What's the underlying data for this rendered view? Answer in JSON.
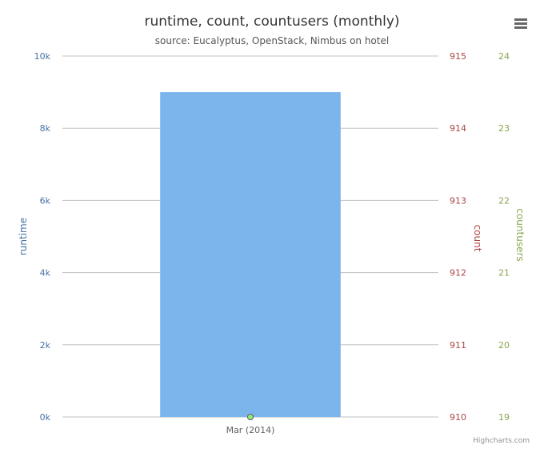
{
  "chart_data": {
    "type": "bar",
    "title": "runtime, count, countusers (monthly)",
    "subtitle": "source: Eucalyptus, OpenStack, Nimbus on hotel",
    "categories": [
      "Mar (2014)"
    ],
    "axes": {
      "runtime": {
        "label": "runtime",
        "color": "#4572a7",
        "range": [
          0,
          10000
        ],
        "ticks": [
          "0k",
          "2k",
          "4k",
          "6k",
          "8k",
          "10k"
        ]
      },
      "count": {
        "label": "count",
        "color": "#aa4643",
        "range": [
          910,
          915
        ],
        "ticks": [
          "910",
          "911",
          "912",
          "913",
          "914",
          "915"
        ]
      },
      "countusers": {
        "label": "countusers",
        "color": "#89a54e",
        "range": [
          19,
          24
        ],
        "ticks": [
          "19",
          "20",
          "21",
          "22",
          "23",
          "24"
        ]
      }
    },
    "series": [
      {
        "type": "bar",
        "axis": "runtime",
        "color": "#7cb5ec",
        "values": [
          9000
        ]
      },
      {
        "type": "line",
        "axis": "count",
        "color": "#aa4643",
        "values": [
          910
        ]
      },
      {
        "type": "line",
        "axis": "countusers",
        "color": "#90ed7d",
        "values": [
          19
        ]
      }
    ],
    "grid": true,
    "legend": "none"
  },
  "credits": "Highcharts.com",
  "menu_icon": "hamburger-menu-icon"
}
